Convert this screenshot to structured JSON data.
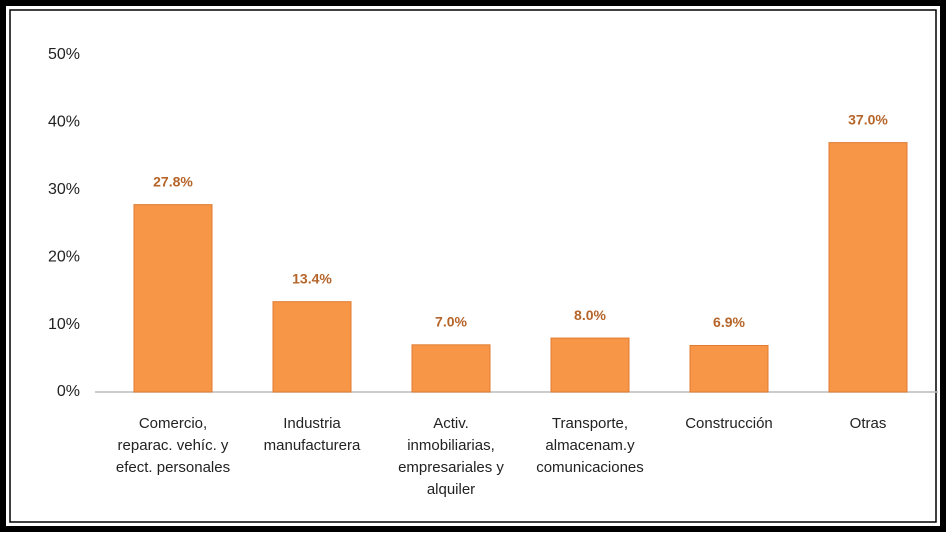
{
  "chart_data": {
    "type": "bar",
    "categories": [
      [
        "Comercio,",
        "reparac. vehíc. y",
        "efect. personales"
      ],
      [
        "Industria",
        "manufacturera"
      ],
      [
        "Activ.",
        "inmobiliarias,",
        "empresariales y",
        "alquiler"
      ],
      [
        "Transporte,",
        "almacenam.y",
        "comunicaciones"
      ],
      [
        "Construcción"
      ],
      [
        "Otras"
      ]
    ],
    "values": [
      27.8,
      13.4,
      7.0,
      8.0,
      6.9,
      37.0
    ],
    "value_labels": [
      "27.8%",
      "13.4%",
      "7.0%",
      "8.0%",
      "6.9%",
      "37.0%"
    ],
    "color": "#f79646",
    "ylim": [
      0,
      50
    ],
    "yticks": [
      {
        "value": 0,
        "label": "0%"
      },
      {
        "value": 10,
        "label": "10%"
      },
      {
        "value": 20,
        "label": "20%"
      },
      {
        "value": 30,
        "label": "30%"
      },
      {
        "value": 40,
        "label": "40%"
      },
      {
        "value": 50,
        "label": "50%"
      }
    ],
    "grid": false
  }
}
